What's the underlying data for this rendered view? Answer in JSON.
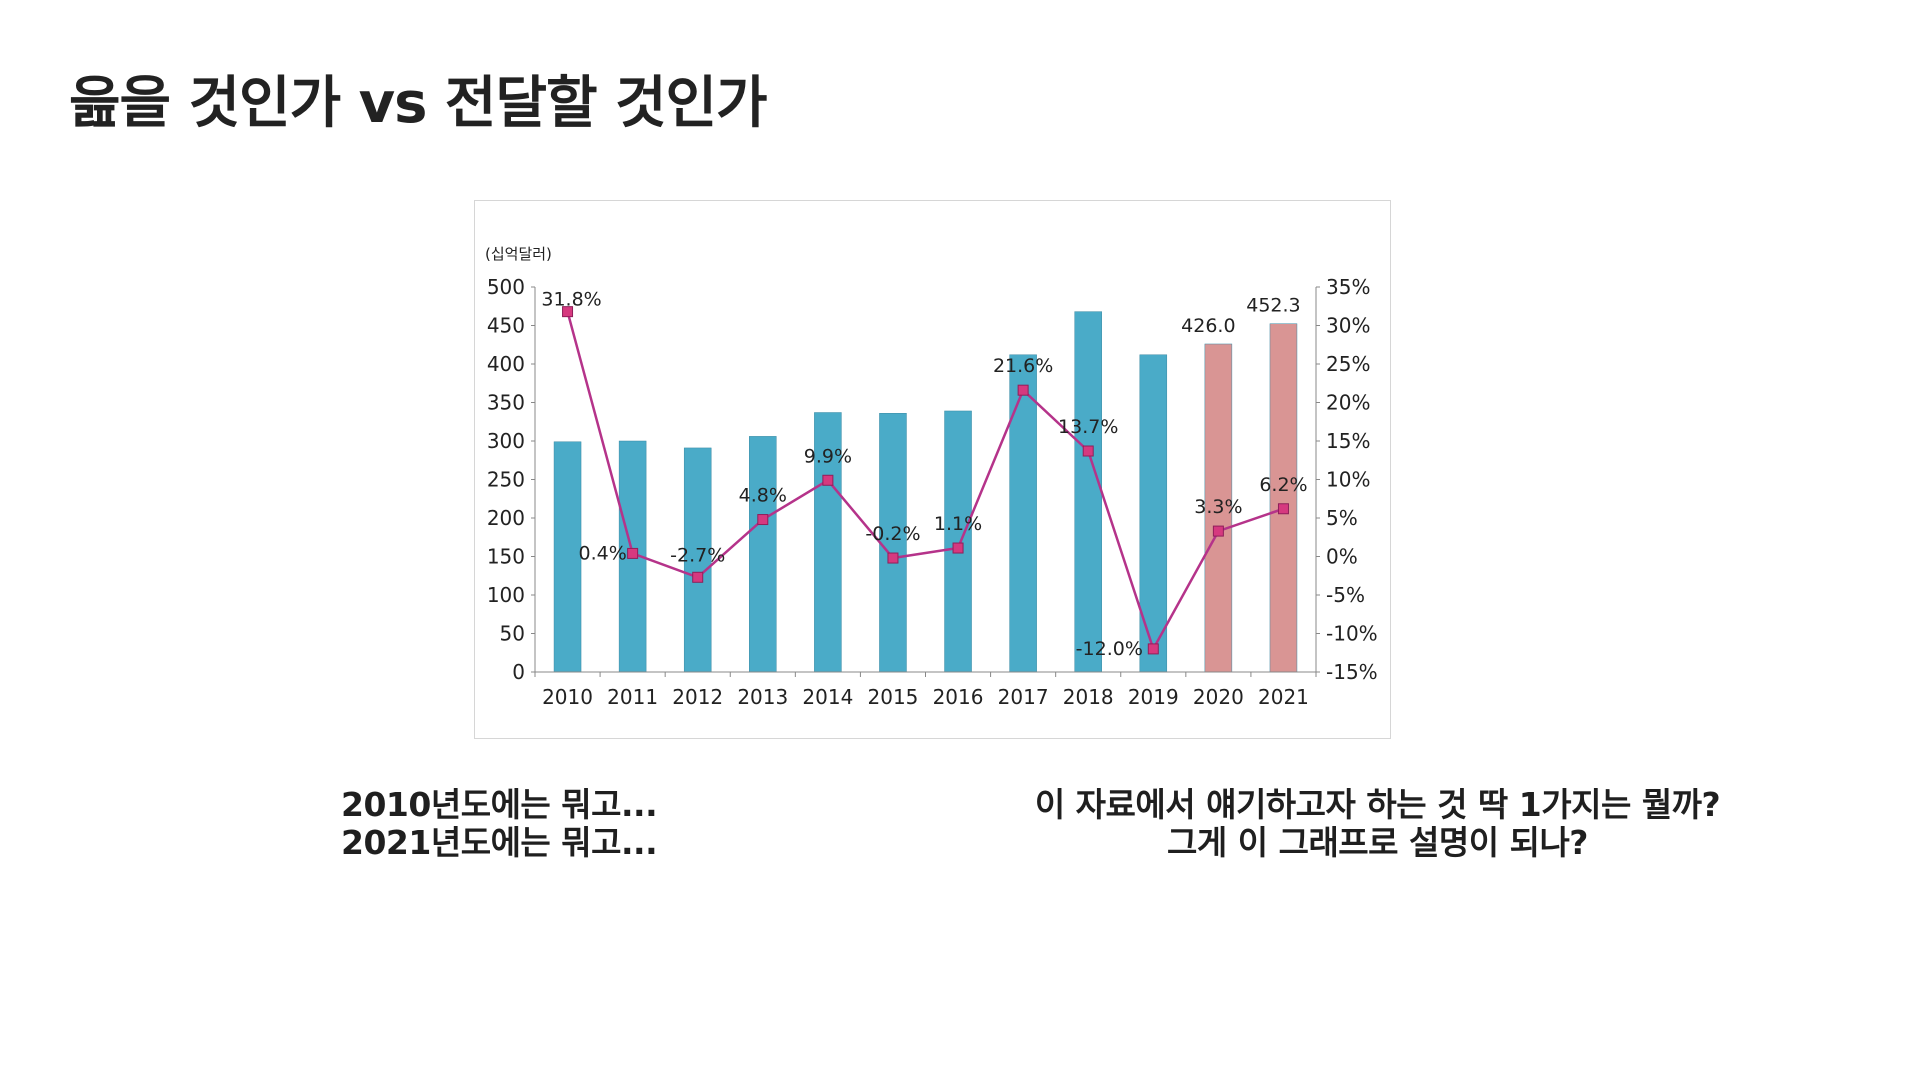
{
  "slide": {
    "title": "읊을 것인가 vs 전달할 것인가"
  },
  "captions": {
    "left": [
      "2010년도에는 뭐고...",
      "2021년도에는 뭐고..."
    ],
    "right": [
      "이 자료에서 얘기하고자 하는 것 딱 1가지는 뭘까?",
      "그게 이 그래프로 설명이 되나?"
    ]
  },
  "chart_data": {
    "type": "bar",
    "unit_label": "(십억달러)",
    "categories": [
      "2010",
      "2011",
      "2012",
      "2013",
      "2014",
      "2015",
      "2016",
      "2017",
      "2018",
      "2019",
      "2020",
      "2021"
    ],
    "series": [
      {
        "type": "bar",
        "values": [
          299,
          300,
          291,
          306,
          337,
          336,
          339,
          412,
          468,
          412,
          426.0,
          452.3
        ],
        "colors": [
          "#4aabc8",
          "#4aabc8",
          "#4aabc8",
          "#4aabc8",
          "#4aabc8",
          "#4aabc8",
          "#4aabc8",
          "#4aabc8",
          "#4aabc8",
          "#4aabc8",
          "#d99594",
          "#d99594"
        ],
        "value_labels": [
          "",
          "",
          "",
          "",
          "",
          "",
          "",
          "",
          "",
          "",
          "426.0",
          "452.3"
        ],
        "axis": "left"
      },
      {
        "type": "line",
        "values": [
          31.8,
          0.4,
          -2.7,
          4.8,
          9.9,
          -0.2,
          1.1,
          21.6,
          13.7,
          -12.0,
          3.3,
          6.2
        ],
        "value_labels": [
          "31.8%",
          "0.4%",
          "-2.7%",
          "4.8%",
          "9.9%",
          "-0.2%",
          "1.1%",
          "21.6%",
          "13.7%",
          "-12.0%",
          "3.3%",
          "6.2%"
        ],
        "color": "#b5338a",
        "axis": "right"
      }
    ],
    "left_axis": {
      "ylim": [
        0,
        500
      ],
      "ticks": [
        "0",
        "50",
        "100",
        "150",
        "200",
        "250",
        "300",
        "350",
        "400",
        "450",
        "500"
      ]
    },
    "right_axis": {
      "ylim": [
        -15,
        35
      ],
      "ticks": [
        "-15%",
        "-10%",
        "-5%",
        "0%",
        "5%",
        "10%",
        "15%",
        "20%",
        "25%",
        "30%",
        "35%"
      ]
    },
    "grid": false,
    "legend": "none"
  }
}
